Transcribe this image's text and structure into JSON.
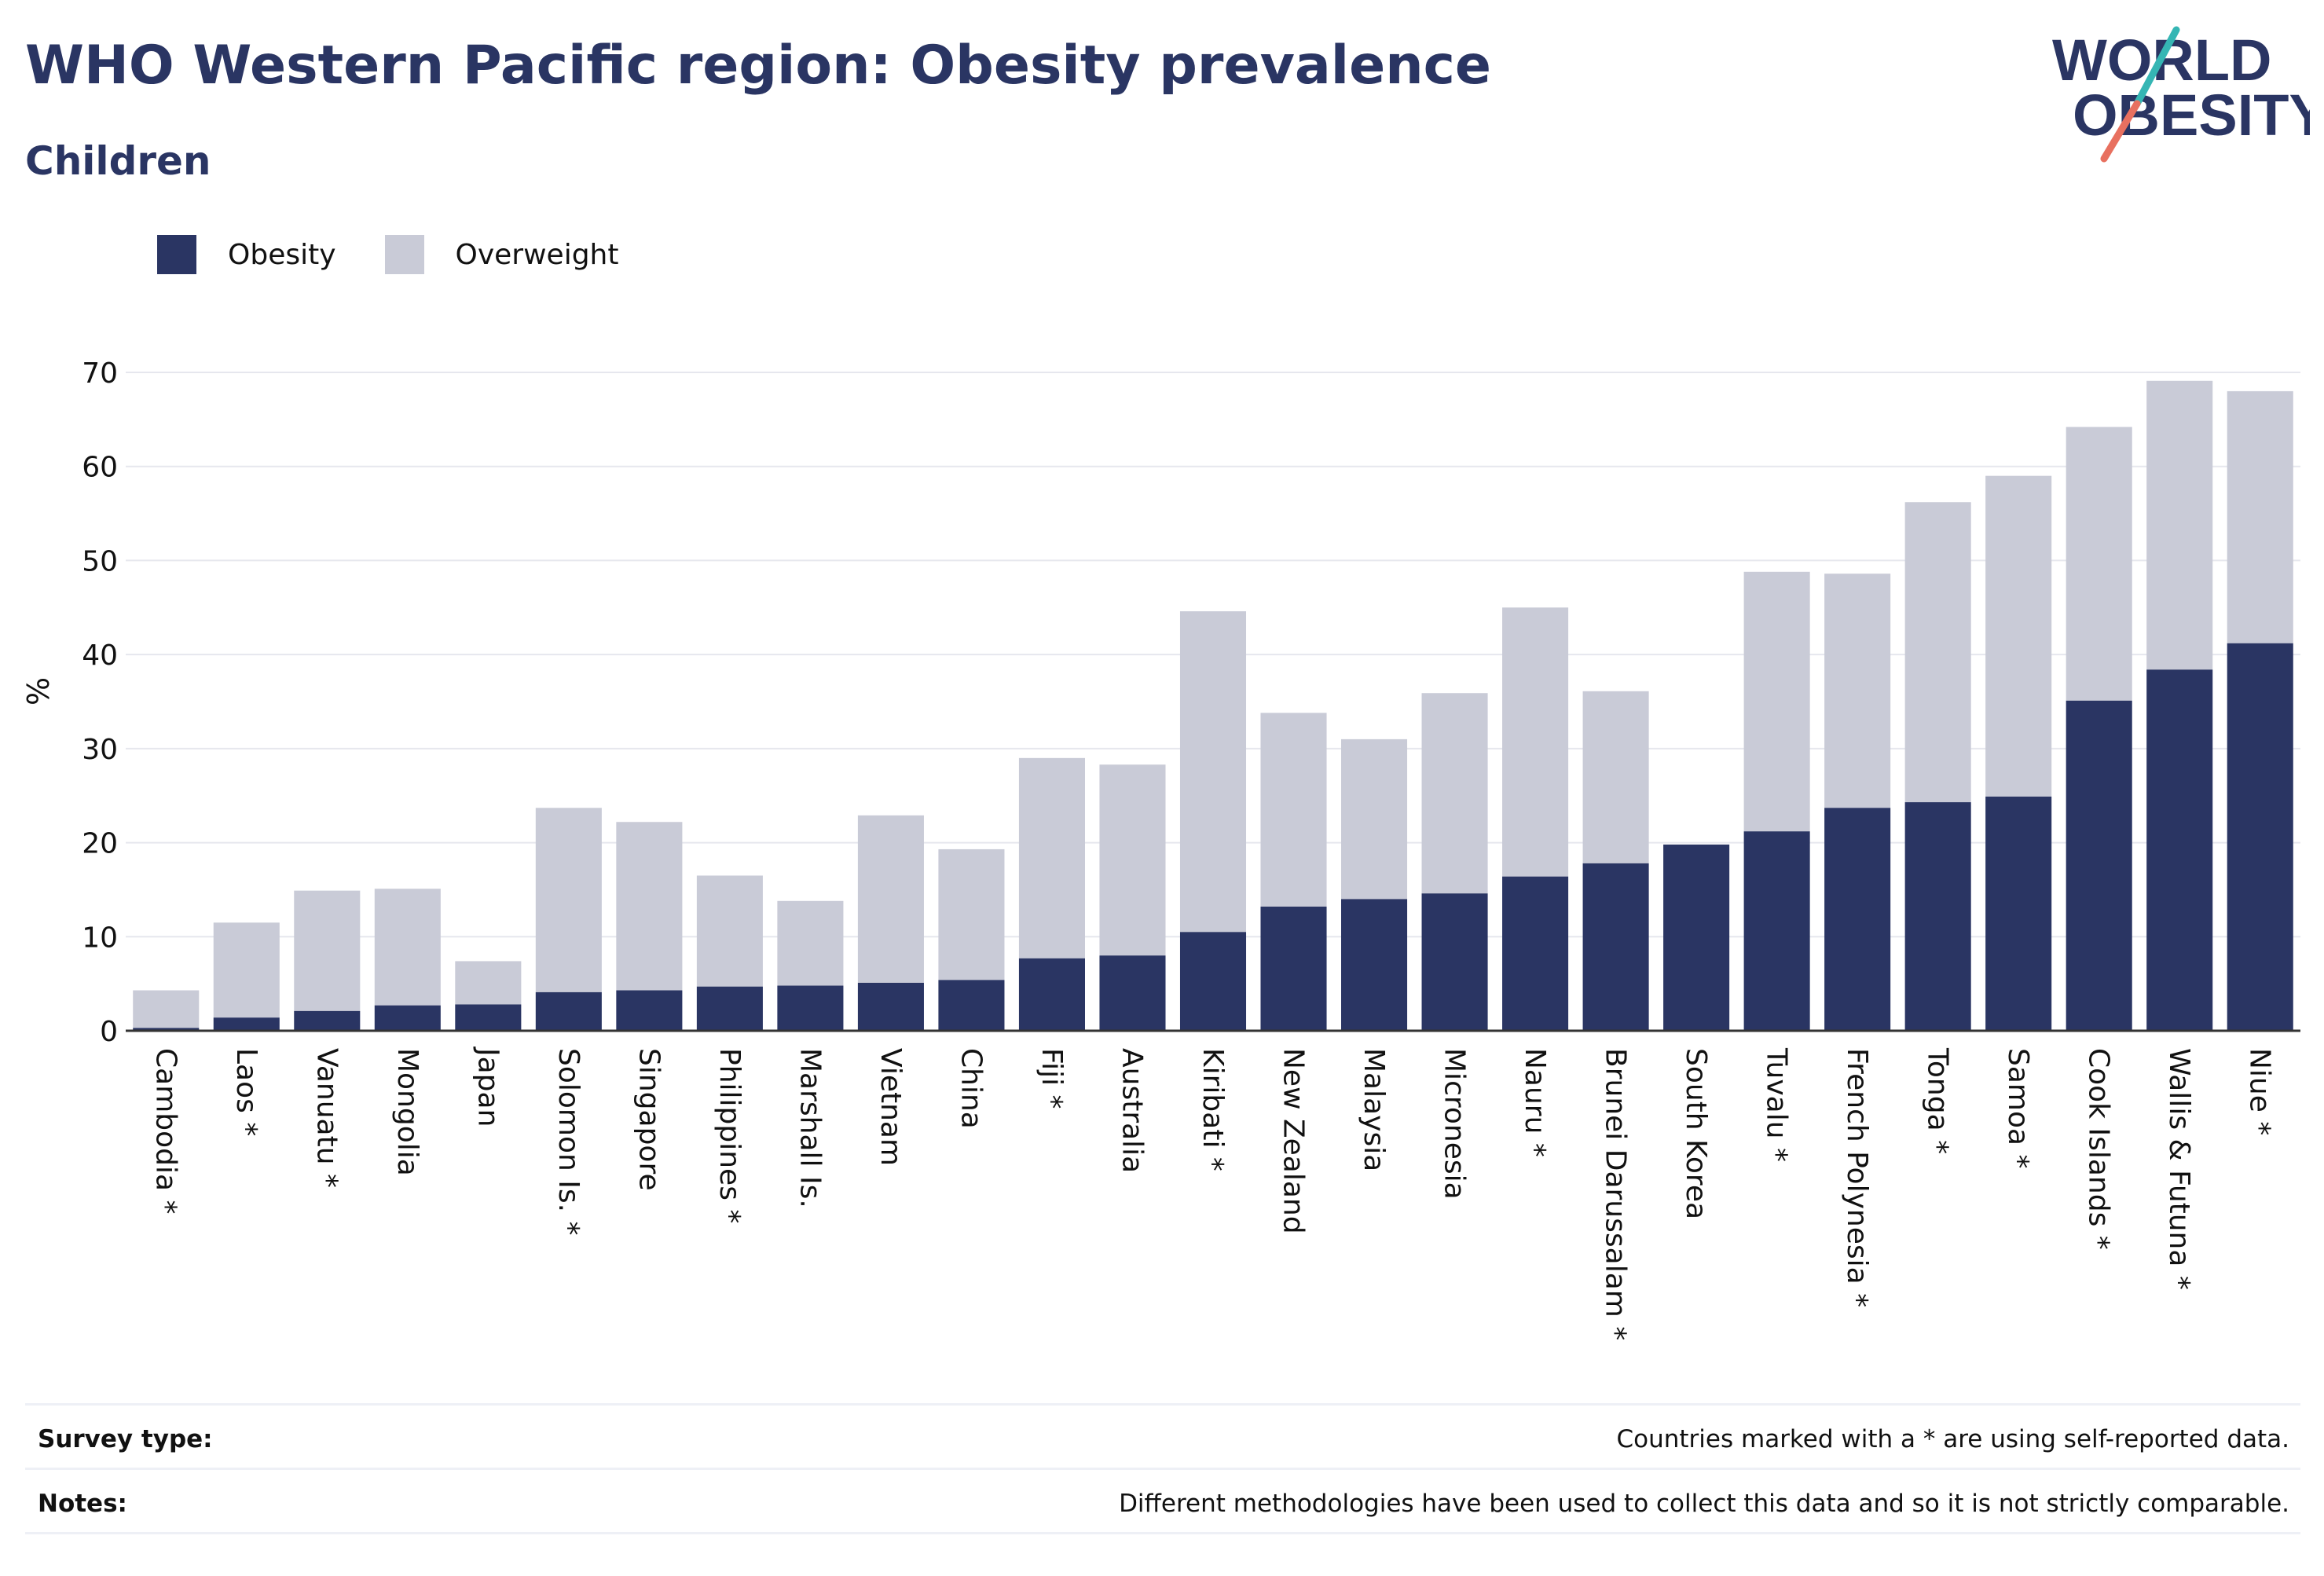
{
  "header": {
    "title": "WHO Western Pacific region: Obesity prevalence",
    "subtitle": "Children",
    "logo_line1": "WORLD",
    "logo_line2": "OBESITY"
  },
  "legend": {
    "obesity": "Obesity",
    "overweight": "Overweight"
  },
  "colors": {
    "obesity": "#2a3563",
    "overweight": "#c9cbd7",
    "title": "#2a3563",
    "logo_teal": "#35b6b4",
    "logo_coral": "#e8705f"
  },
  "chart_data": {
    "type": "bar",
    "stacked": true,
    "ylabel": "%",
    "ylim": [
      0,
      70
    ],
    "yticks": [
      0,
      10,
      20,
      30,
      40,
      50,
      60,
      70
    ],
    "grid": true,
    "legend_position": "top-left",
    "categories": [
      "Cambodia *",
      "Laos *",
      "Vanuatu *",
      "Mongolia",
      "Japan",
      "Solomon Is. *",
      "Singapore",
      "Philippines *",
      "Marshall Is.",
      "Vietnam",
      "China",
      "Fiji *",
      "Australia",
      "Kiribati *",
      "New Zealand",
      "Malaysia",
      "Micronesia",
      "Nauru *",
      "Brunei Darussalam *",
      "South Korea",
      "Tuvalu *",
      "French Polynesia *",
      "Tonga *",
      "Samoa *",
      "Cook Islands *",
      "Wallis & Futuna *",
      "Niue *"
    ],
    "series": [
      {
        "name": "Obesity",
        "values": [
          0.3,
          1.4,
          2.1,
          2.7,
          2.8,
          4.1,
          4.3,
          4.7,
          4.8,
          5.1,
          5.4,
          7.7,
          8.0,
          10.5,
          13.2,
          14.0,
          14.6,
          16.4,
          17.8,
          19.8,
          21.2,
          23.7,
          24.3,
          24.9,
          35.1,
          38.4,
          41.2
        ]
      },
      {
        "name": "Overweight",
        "values": [
          4.0,
          10.1,
          12.8,
          12.4,
          4.6,
          19.6,
          17.9,
          11.8,
          9.0,
          17.8,
          13.9,
          21.3,
          20.3,
          34.1,
          20.6,
          17.0,
          21.3,
          28.6,
          18.3,
          0.0,
          27.6,
          24.9,
          31.9,
          34.1,
          29.1,
          30.7,
          26.8
        ]
      }
    ]
  },
  "footer": {
    "survey_label": "Survey type:",
    "survey_text": "Countries marked with a * are using self-reported data.",
    "notes_label": "Notes:",
    "notes_text": "Different methodologies have been used to collect this data and so it is not strictly comparable."
  }
}
